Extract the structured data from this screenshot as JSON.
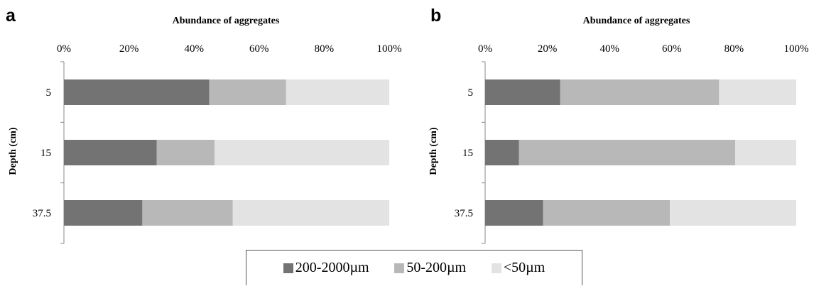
{
  "legend": {
    "series": [
      {
        "name": "200-2000µm",
        "color": "#737373"
      },
      {
        "name": "50-200µm",
        "color": "#b8b8b8"
      },
      {
        "name": "<50µm",
        "color": "#e3e3e3"
      }
    ]
  },
  "chart_data": [
    {
      "panel": "a",
      "type": "bar",
      "orientation": "horizontal",
      "stacked": "percent",
      "title": "Abundance of aggregates",
      "xlabel": "",
      "ylabel": "Depth (cm)",
      "xlim": [
        0,
        100
      ],
      "x_ticks": [
        "0%",
        "20%",
        "40%",
        "60%",
        "80%",
        "100%"
      ],
      "categories": [
        "5",
        "15",
        "37.5"
      ],
      "series": [
        {
          "name": "200-2000µm",
          "values": [
            44.7,
            28.5,
            24.1
          ]
        },
        {
          "name": "50-200µm",
          "values": [
            23.6,
            17.8,
            27.8
          ]
        },
        {
          "name": "<50µm",
          "values": [
            31.7,
            53.7,
            48.1
          ]
        }
      ],
      "legend_position": "bottom",
      "grid": false
    },
    {
      "panel": "b",
      "type": "bar",
      "orientation": "horizontal",
      "stacked": "percent",
      "title": "Abundance of aggregates",
      "xlabel": "",
      "ylabel": "Depth (cm)",
      "xlim": [
        0,
        100
      ],
      "x_ticks": [
        "0%",
        "20%",
        "40%",
        "60%",
        "80%",
        "100%"
      ],
      "categories": [
        "5",
        "15",
        "37.5"
      ],
      "series": [
        {
          "name": "200-2000µm",
          "values": [
            24.1,
            10.9,
            18.6
          ]
        },
        {
          "name": "50-200µm",
          "values": [
            51.1,
            69.5,
            40.8
          ]
        },
        {
          "name": "<50µm",
          "values": [
            24.8,
            19.6,
            40.6
          ]
        }
      ],
      "legend_position": "bottom",
      "grid": false
    }
  ]
}
